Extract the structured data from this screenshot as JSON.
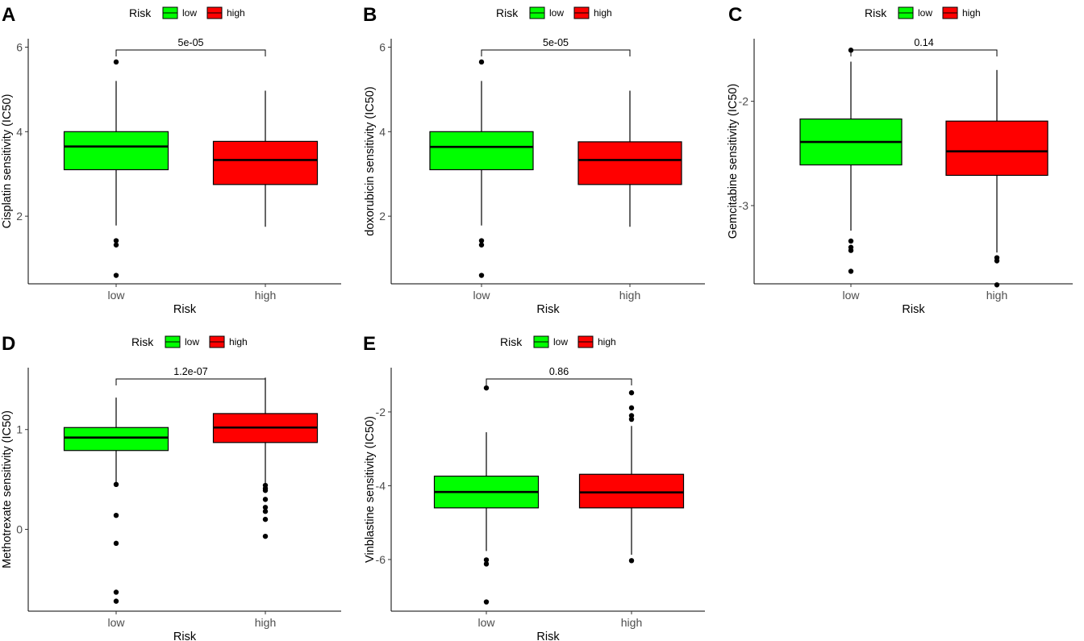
{
  "colors": {
    "low": "#00FF00",
    "high": "#FF0000",
    "outlier": "#000000",
    "axis": "#000000"
  },
  "chart_data": [
    {
      "type": "box",
      "panel": "A",
      "title": "",
      "xlabel": "Risk",
      "ylabel": "Cisplatin sensitivity (IC50)",
      "ylim": [
        0.4,
        6.2
      ],
      "yticks": [
        2,
        4,
        6
      ],
      "ytick_labels": [
        "2",
        "4",
        "6"
      ],
      "categories": [
        "low",
        "high"
      ],
      "legend": {
        "title": "Risk",
        "entries": [
          "low",
          "high"
        ]
      },
      "p_value": "5e-05",
      "boxes": [
        {
          "group": "low",
          "q1": 3.1,
          "median": 3.65,
          "q3": 4.0,
          "whisker_low": 1.78,
          "whisker_high": 5.2,
          "outliers": [
            5.65,
            1.42,
            1.32,
            0.6
          ]
        },
        {
          "group": "high",
          "q1": 2.75,
          "median": 3.33,
          "q3": 3.77,
          "whisker_low": 1.75,
          "whisker_high": 4.97,
          "outliers": []
        }
      ]
    },
    {
      "type": "box",
      "panel": "B",
      "title": "",
      "xlabel": "Risk",
      "ylabel": "doxorubicin sensitivity (IC50)",
      "ylim": [
        0.4,
        6.2
      ],
      "yticks": [
        2,
        4,
        6
      ],
      "ytick_labels": [
        "2",
        "4",
        "6"
      ],
      "categories": [
        "low",
        "high"
      ],
      "legend": {
        "title": "Risk",
        "entries": [
          "low",
          "high"
        ]
      },
      "p_value": "5e-05",
      "boxes": [
        {
          "group": "low",
          "q1": 3.1,
          "median": 3.64,
          "q3": 4.0,
          "whisker_low": 1.78,
          "whisker_high": 5.2,
          "outliers": [
            5.65,
            1.42,
            1.32,
            0.6
          ]
        },
        {
          "group": "high",
          "q1": 2.75,
          "median": 3.33,
          "q3": 3.76,
          "whisker_low": 1.75,
          "whisker_high": 4.97,
          "outliers": []
        }
      ]
    },
    {
      "type": "box",
      "panel": "C",
      "title": "",
      "xlabel": "Risk",
      "ylabel": "Gemcitabine sensitivity (IC50)",
      "ylim": [
        -3.75,
        -1.4
      ],
      "yticks": [
        -3,
        -2
      ],
      "ytick_labels": [
        "-3",
        "-2"
      ],
      "categories": [
        "low",
        "high"
      ],
      "legend": {
        "title": "Risk",
        "entries": [
          "low",
          "high"
        ]
      },
      "p_value": "0.14",
      "boxes": [
        {
          "group": "low",
          "q1": -2.61,
          "median": -2.39,
          "q3": -2.17,
          "whisker_low": -3.24,
          "whisker_high": -1.62,
          "outliers": [
            -1.51,
            -3.34,
            -3.4,
            -3.43,
            -3.63
          ]
        },
        {
          "group": "high",
          "q1": -2.71,
          "median": -2.48,
          "q3": -2.19,
          "whisker_low": -3.45,
          "whisker_high": -1.7,
          "outliers": [
            -3.5,
            -3.53,
            -3.76
          ]
        }
      ]
    },
    {
      "type": "box",
      "panel": "D",
      "title": "",
      "xlabel": "Risk",
      "ylabel": "Methotrexate sensitivity (IC50)",
      "ylim": [
        -0.82,
        1.62
      ],
      "yticks": [
        0,
        1
      ],
      "ytick_labels": [
        "0",
        "1"
      ],
      "categories": [
        "low",
        "high"
      ],
      "legend": {
        "title": "Risk",
        "entries": [
          "low",
          "high"
        ]
      },
      "p_value": "1.2e-07",
      "boxes": [
        {
          "group": "low",
          "q1": 0.79,
          "median": 0.92,
          "q3": 1.02,
          "whisker_low": 0.47,
          "whisker_high": 1.32,
          "outliers": [
            0.45,
            0.14,
            -0.14,
            -0.63,
            -0.72
          ]
        },
        {
          "group": "high",
          "q1": 0.87,
          "median": 1.02,
          "q3": 1.16,
          "whisker_low": 0.46,
          "whisker_high": 1.52,
          "outliers": [
            0.44,
            0.41,
            0.39,
            0.3,
            0.22,
            0.18,
            0.1,
            -0.07
          ]
        }
      ]
    },
    {
      "type": "box",
      "panel": "E",
      "title": "",
      "xlabel": "Risk",
      "ylabel": "Vinblastine sensitivity (IC50)",
      "ylim": [
        -7.4,
        -0.8
      ],
      "yticks": [
        -6,
        -4,
        -2
      ],
      "ytick_labels": [
        "-6",
        "-4",
        "-2"
      ],
      "categories": [
        "low",
        "high"
      ],
      "legend": {
        "title": "Risk",
        "entries": [
          "low",
          "high"
        ]
      },
      "p_value": "0.86",
      "boxes": [
        {
          "group": "low",
          "q1": -4.6,
          "median": -4.17,
          "q3": -3.74,
          "whisker_low": -5.77,
          "whisker_high": -2.55,
          "outliers": [
            -1.35,
            -6.01,
            -6.12,
            -7.15
          ]
        },
        {
          "group": "high",
          "q1": -4.6,
          "median": -4.18,
          "q3": -3.69,
          "whisker_low": -5.87,
          "whisker_high": -2.38,
          "outliers": [
            -1.48,
            -1.89,
            -2.1,
            -2.2,
            -6.03
          ]
        }
      ]
    }
  ]
}
